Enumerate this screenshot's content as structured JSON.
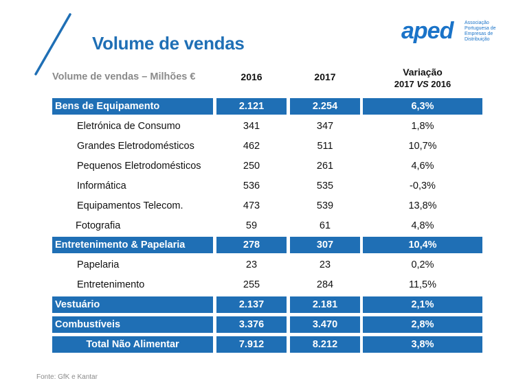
{
  "title": "Volume de vendas",
  "logo": {
    "word": "aped",
    "subtitle": "Associação Portuguesa de Empresas de Distribuição"
  },
  "table": {
    "header": {
      "label": "Volume de vendas – Milhões €",
      "col_2016": "2016",
      "col_2017": "2017",
      "var_line1": "Variação",
      "var_line2_a": "2017 ",
      "var_line2_vs": "VS",
      "var_line2_b": " 2016"
    },
    "rows": [
      {
        "label": "Bens de Equipamento",
        "v2016": "2.121",
        "v2017": "2.254",
        "var": "6,3%"
      },
      {
        "label": "Eletrónica de Consumo",
        "v2016": "341",
        "v2017": "347",
        "var": "1,8%"
      },
      {
        "label": "Grandes Eletrodomésticos",
        "v2016": "462",
        "v2017": "511",
        "var": "10,7%"
      },
      {
        "label": "Pequenos Eletrodomésticos",
        "v2016": "250",
        "v2017": "261",
        "var": "4,6%"
      },
      {
        "label": "Informática",
        "v2016": "536",
        "v2017": "535",
        "var": "-0,3%"
      },
      {
        "label": "Equipamentos Telecom.",
        "v2016": "473",
        "v2017": "539",
        "var": "13,8%"
      },
      {
        "label": "Fotografia",
        "v2016": "59",
        "v2017": "61",
        "var": "4,8%"
      },
      {
        "label": "Entretenimento & Papelaria",
        "v2016": "278",
        "v2017": "307",
        "var": "10,4%"
      },
      {
        "label": "Papelaria",
        "v2016": "23",
        "v2017": "23",
        "var": "0,2%"
      },
      {
        "label": "Entretenimento",
        "v2016": "255",
        "v2017": "284",
        "var": "11,5%"
      },
      {
        "label": "Vestuário",
        "v2016": "2.137",
        "v2017": "2.181",
        "var": "2,1%"
      },
      {
        "label": "Combustíveis",
        "v2016": "3.376",
        "v2017": "3.470",
        "var": "2,8%"
      },
      {
        "label": "Total Não Alimentar",
        "v2016": "7.912",
        "v2017": "8.212",
        "var": "3,8%"
      }
    ]
  },
  "footer": "Fonte: GfK e Kantar",
  "colors": {
    "accent": "#1f6fb5",
    "logo": "#1a73c8"
  }
}
